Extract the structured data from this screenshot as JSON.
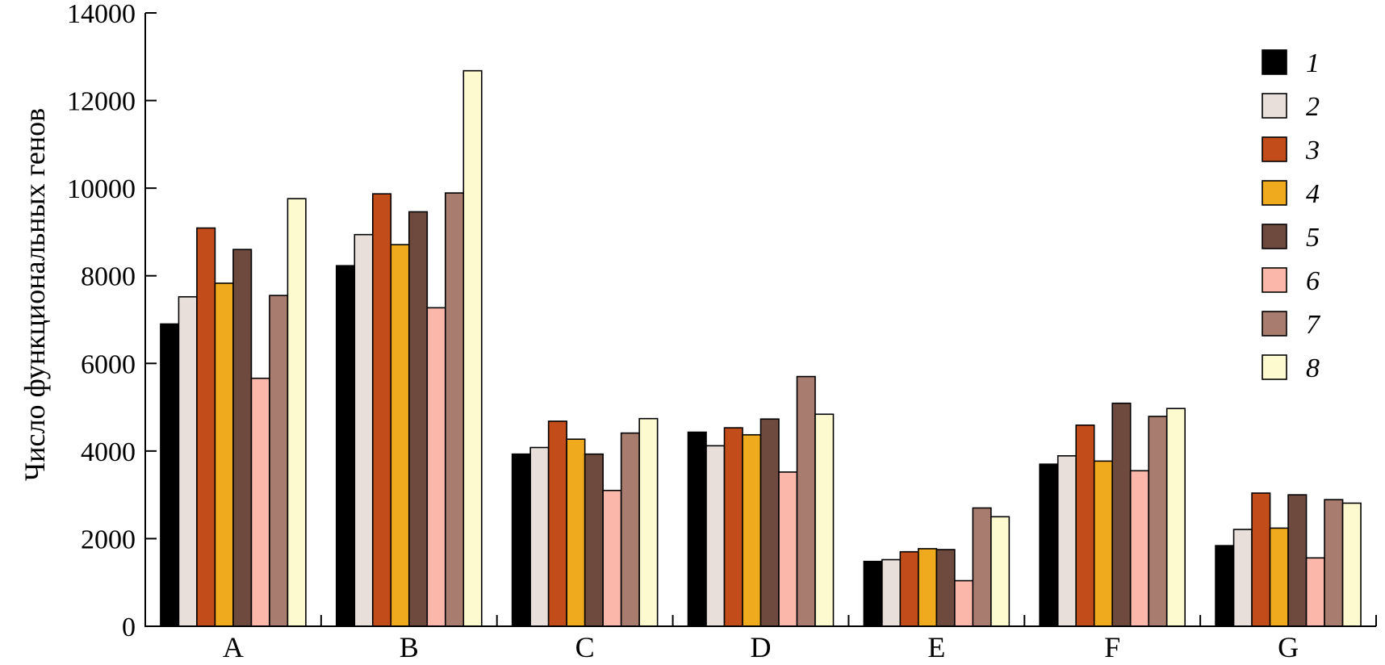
{
  "chart_data": {
    "type": "bar",
    "title": "",
    "xlabel": "",
    "ylabel": "Число функциональных генов",
    "ylim": [
      0,
      14000
    ],
    "yticks": [
      0,
      2000,
      4000,
      6000,
      8000,
      10000,
      12000,
      14000
    ],
    "grid": false,
    "legend_position": "top-right",
    "categories": [
      "A",
      "B",
      "C",
      "D",
      "E",
      "F",
      "G"
    ],
    "series": [
      {
        "name": "1",
        "color": "#000000",
        "values": [
          6900,
          8230,
          3930,
          4430,
          1480,
          3700,
          1840
        ]
      },
      {
        "name": "2",
        "color": "#e8dfda",
        "values": [
          7520,
          8940,
          4080,
          4120,
          1520,
          3890,
          2210
        ]
      },
      {
        "name": "3",
        "color": "#c24d1b",
        "values": [
          9090,
          9870,
          4680,
          4530,
          1700,
          4590,
          3040
        ]
      },
      {
        "name": "4",
        "color": "#f0aa1e",
        "values": [
          7830,
          8710,
          4270,
          4370,
          1770,
          3770,
          2240
        ]
      },
      {
        "name": "5",
        "color": "#6e4a3e",
        "values": [
          8600,
          9460,
          3930,
          4730,
          1750,
          5090,
          3000
        ]
      },
      {
        "name": "6",
        "color": "#fbb8aa",
        "values": [
          5660,
          7270,
          3100,
          3520,
          1040,
          3550,
          1560
        ]
      },
      {
        "name": "7",
        "color": "#a87c6e",
        "values": [
          7550,
          9890,
          4410,
          5700,
          2700,
          4790,
          2890
        ]
      },
      {
        "name": "8",
        "color": "#fefad0",
        "values": [
          9760,
          12680,
          4740,
          4840,
          2500,
          4970,
          2810
        ]
      }
    ]
  }
}
